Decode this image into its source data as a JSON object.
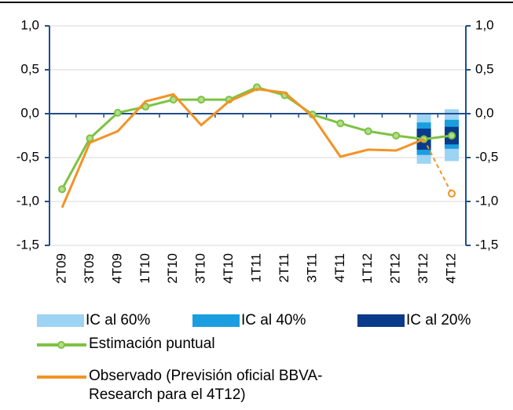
{
  "chart_data": {
    "type": "line",
    "categories": [
      "2T09",
      "3T09",
      "4T09",
      "1T10",
      "2T10",
      "3T10",
      "4T10",
      "1T11",
      "2T11",
      "3T11",
      "4T11",
      "1T12",
      "2T12",
      "3T12",
      "4T12"
    ],
    "ylim": [
      -1.5,
      1.0
    ],
    "yticks": [
      {
        "value": -1.5,
        "label": "-1,5"
      },
      {
        "value": -1.0,
        "label": "-1,0"
      },
      {
        "value": -0.5,
        "label": "-0,5"
      },
      {
        "value": 0.0,
        "label": "0,0"
      },
      {
        "value": 0.5,
        "label": "0,5"
      },
      {
        "value": 1.0,
        "label": "1,0"
      }
    ],
    "y2lim": [
      -1.5,
      1.0
    ],
    "y2ticks": [
      {
        "value": -1.5,
        "label": "-1,5"
      },
      {
        "value": -1.0,
        "label": "-1,0"
      },
      {
        "value": -0.5,
        "label": "-0,5"
      },
      {
        "value": 0.0,
        "label": "0,0"
      },
      {
        "value": 0.5,
        "label": "0,5"
      },
      {
        "value": 1.0,
        "label": "1,0"
      }
    ],
    "grid": true,
    "bands": [
      {
        "name": "IC al 60%",
        "color": "#9dd3f3",
        "low": [
          null,
          null,
          null,
          null,
          null,
          null,
          null,
          null,
          null,
          null,
          null,
          null,
          null,
          -0.57,
          -0.54
        ],
        "high": [
          null,
          null,
          null,
          null,
          null,
          null,
          null,
          null,
          null,
          null,
          null,
          null,
          null,
          0.0,
          0.05
        ]
      },
      {
        "name": "IC al 40%",
        "color": "#1a9ee0",
        "low": [
          null,
          null,
          null,
          null,
          null,
          null,
          null,
          null,
          null,
          null,
          null,
          null,
          null,
          -0.47,
          -0.4
        ],
        "high": [
          null,
          null,
          null,
          null,
          null,
          null,
          null,
          null,
          null,
          null,
          null,
          null,
          null,
          -0.1,
          -0.07
        ]
      },
      {
        "name": "IC al 20%",
        "color": "#0a3a8a",
        "low": [
          null,
          null,
          null,
          null,
          null,
          null,
          null,
          null,
          null,
          null,
          null,
          null,
          null,
          -0.41,
          -0.35
        ],
        "high": [
          null,
          null,
          null,
          null,
          null,
          null,
          null,
          null,
          null,
          null,
          null,
          null,
          null,
          -0.17,
          -0.15
        ]
      }
    ],
    "series": [
      {
        "name": "Estimación puntual",
        "color": "#7dc242",
        "values": [
          -0.86,
          -0.28,
          0.01,
          0.08,
          0.16,
          0.16,
          0.16,
          0.3,
          0.21,
          -0.01,
          -0.11,
          -0.2,
          -0.25,
          -0.29,
          -0.25
        ]
      },
      {
        "name": "Observado (Previsión oficial BBVA-Research para el 4T12)",
        "color": "#f39325",
        "values": [
          -1.07,
          -0.33,
          -0.2,
          0.14,
          0.22,
          -0.13,
          0.14,
          0.28,
          0.24,
          -0.03,
          -0.49,
          -0.41,
          -0.42,
          -0.29,
          null
        ],
        "forecast": [
          null,
          null,
          null,
          null,
          null,
          null,
          null,
          null,
          null,
          null,
          null,
          null,
          null,
          null,
          -0.91
        ]
      }
    ]
  }
}
